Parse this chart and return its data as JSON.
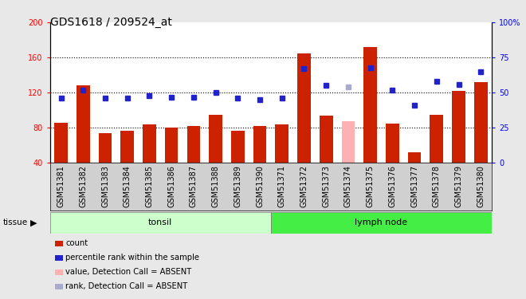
{
  "title": "GDS1618 / 209524_at",
  "samples": [
    "GSM51381",
    "GSM51382",
    "GSM51383",
    "GSM51384",
    "GSM51385",
    "GSM51386",
    "GSM51387",
    "GSM51388",
    "GSM51389",
    "GSM51390",
    "GSM51371",
    "GSM51372",
    "GSM51373",
    "GSM51374",
    "GSM51375",
    "GSM51376",
    "GSM51377",
    "GSM51378",
    "GSM51379",
    "GSM51380"
  ],
  "bar_values": [
    86,
    128,
    74,
    77,
    84,
    80,
    82,
    95,
    77,
    82,
    84,
    165,
    94,
    88,
    172,
    85,
    52,
    95,
    122,
    132
  ],
  "bar_absent": [
    false,
    false,
    false,
    false,
    false,
    false,
    false,
    false,
    false,
    false,
    false,
    false,
    false,
    true,
    false,
    false,
    false,
    false,
    false,
    false
  ],
  "rank_values": [
    46,
    52,
    46,
    46,
    48,
    47,
    47,
    50,
    46,
    45,
    46,
    67,
    55,
    54,
    68,
    52,
    41,
    58,
    56,
    65
  ],
  "rank_absent": [
    false,
    false,
    false,
    false,
    false,
    false,
    false,
    false,
    false,
    false,
    false,
    false,
    false,
    true,
    false,
    false,
    false,
    false,
    false,
    false
  ],
  "tonsil_count": 10,
  "lymph_count": 10,
  "tonsil_label": "tonsil",
  "lymph_label": "lymph node",
  "tissue_label": "tissue",
  "ylim_left": [
    40,
    200
  ],
  "ylim_right": [
    0,
    100
  ],
  "yticks_left": [
    40,
    80,
    120,
    160,
    200
  ],
  "yticks_right": [
    0,
    25,
    50,
    75,
    100
  ],
  "bar_color": "#CC2200",
  "bar_absent_color": "#FFB0B0",
  "rank_color": "#2222CC",
  "rank_absent_color": "#AAAACC",
  "tonsil_bg": "#CCFFCC",
  "lymph_bg": "#44EE44",
  "fig_bg": "#E8E8E8",
  "plot_bg": "#FFFFFF",
  "xlabel_bg": "#D0D0D0",
  "title_fontsize": 10,
  "tick_fontsize": 7,
  "legend_items": [
    [
      "#CC2200",
      "count"
    ],
    [
      "#2222CC",
      "percentile rank within the sample"
    ],
    [
      "#FFB0B0",
      "value, Detection Call = ABSENT"
    ],
    [
      "#AAAACC",
      "rank, Detection Call = ABSENT"
    ]
  ]
}
